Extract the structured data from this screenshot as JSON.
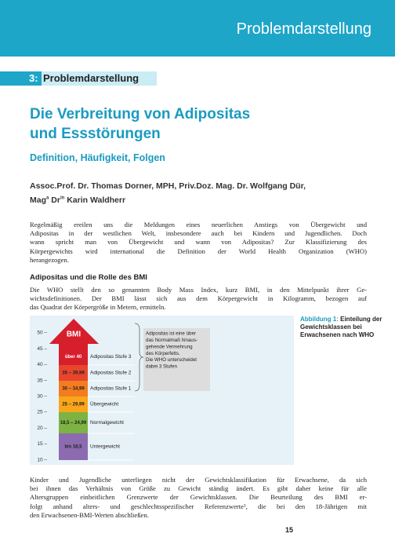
{
  "header": {
    "banner": "Problemdarstellung",
    "section_number": "3:",
    "section_title": "Problemdarstellung"
  },
  "article": {
    "title_lines": [
      "Die Verbreitung von Adipositas",
      "und Essstörungen"
    ],
    "subtitle": "Definition, Häufigkeit, Folgen",
    "authors_line1": "Assoc.Prof. Dr. Thomas Dorner, MPH, Priv.Doz. Mag. Dr. Wolfgang Dür,",
    "authors_line2": [
      "Mag",
      "a",
      " Dr",
      "in",
      " Karin Waldherr"
    ],
    "paragraph1": [
      "Regelmäßig ereilen uns die Meldungen eines neuerlichen Anstiegs von Übergewicht und",
      "Adipositas in der westlichen Welt, insbesondere auch bei Kindern und Jugendlichen. Doch",
      "wann spricht man von Übergewicht und wann von Adipositas? Zur Klassifizierung des",
      "Körpergewichts wird international die Definition der World Health Organization (WHO)",
      "herangezogen."
    ],
    "heading": "Adipositas und die Rolle des BMI",
    "paragraph2": [
      "Die WHO stellt den so genannten Body Mass Index, kurz BMI, in den Mittelpunkt ihrer Ge-",
      "wichtsdefinitionen. Der BMI lässt sich aus dem Körpergewicht in Kilogramm, bezogen auf",
      "das Quadrat der Körpergröße in Metern, ermitteln."
    ],
    "paragraph3": [
      "Kinder und Jugendliche unterliegen nicht der Gewichtsklassifikation für Erwachsene, da sich",
      "bei ihnen das Verhältnis von Größe zu Gewicht ständig ändert. Es gibt daher keine für alle",
      "Altersgruppen einheitlichen Grenzwerte der Gewichtsklassen. Die Beurteilung des BMI er-",
      "folgt anhand alters- und geschlechtsspezifischer Referenzwerte¹, die bei den 18-Jährigen mit",
      "den Erwachsenen-BMI-Werten abschließen."
    ],
    "page_number": "15"
  },
  "figure": {
    "caption_label": "Abbildung 1:",
    "caption_text": "Einteilung der Gewichtsklassen bei Erwachsenen nach WHO",
    "arrow_label": "BMI",
    "ticks": [
      "50 –",
      "45 –",
      "40 –",
      "35 –",
      "30 –",
      "25 –",
      "20 –",
      "15 –",
      "10 –"
    ],
    "classes": [
      {
        "range": "über 40",
        "name": "Adipositas Stufe 3"
      },
      {
        "range": "35 – 39,99",
        "name": "Adipositas Stufe 2"
      },
      {
        "range": "30 – 34,99",
        "name": "Adipositas Stufe 1"
      },
      {
        "range": "25 – 29,99",
        "name": "Übergewicht"
      },
      {
        "range": "18,5 – 24,99",
        "name": "Normalgewicht"
      },
      {
        "range": "bis 18,5",
        "name": "Untergewicht"
      }
    ],
    "note": [
      "Adipositas ist eine über",
      "das Normalmaß hinaus-",
      "gehende Vermehrung",
      "des Körperfetts.",
      "Die WHO unterscheidet",
      "dabei 3 Stufen"
    ]
  }
}
